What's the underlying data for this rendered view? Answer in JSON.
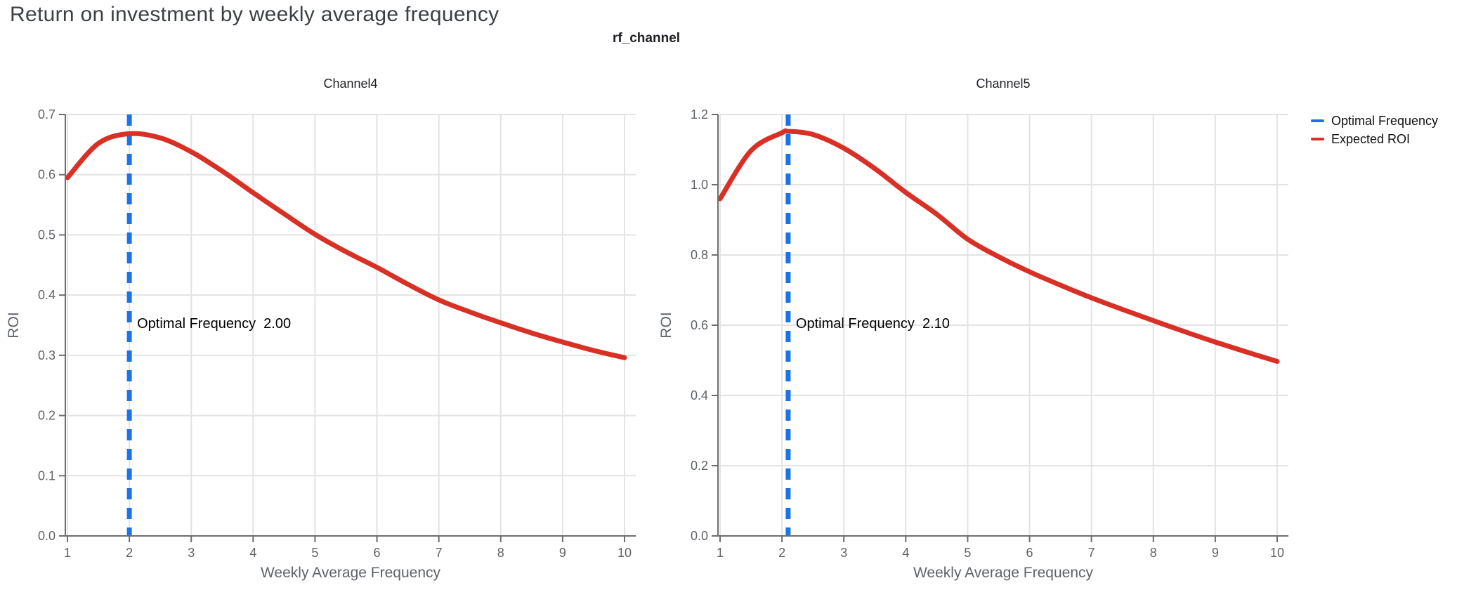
{
  "page": {
    "title": "Return on investment by weekly average frequency",
    "subtitle": "rf_channel"
  },
  "legend": {
    "position": "top-right",
    "items": [
      {
        "label": "Optimal Frequency",
        "color": "#1a73e8"
      },
      {
        "label": "Expected ROI",
        "color": "#d93025"
      }
    ]
  },
  "colors": {
    "accent_blue": "#1a73e8",
    "accent_red": "#d93025",
    "grid": "#e3e3e3",
    "axis": "#6e6e6e",
    "tick_text": "#5f6368",
    "title_text": "#3c4043",
    "chart_title_text": "#202124",
    "annotation_text": "#000000"
  },
  "chart_data": [
    {
      "type": "line",
      "title": "Channel4",
      "xlabel": "Weekly Average Frequency",
      "ylabel": "ROI",
      "xlim": [
        1,
        10
      ],
      "ylim": [
        0,
        0.7
      ],
      "xticks": [
        1,
        2,
        3,
        4,
        5,
        6,
        7,
        8,
        9,
        10
      ],
      "yticks": [
        0.0,
        0.1,
        0.2,
        0.3,
        0.4,
        0.5,
        0.6,
        0.7
      ],
      "grid": true,
      "vline": {
        "name": "Optimal Frequency",
        "x": 2.0,
        "color": "#1a73e8",
        "style": "dashed"
      },
      "annotation": {
        "label": "Optimal Frequency",
        "value": "2.00"
      },
      "series": [
        {
          "name": "Expected ROI",
          "color": "#d93025",
          "x": [
            1,
            1.5,
            2,
            2.5,
            3,
            3.5,
            4,
            4.5,
            5,
            5.5,
            6,
            6.5,
            7,
            7.5,
            8,
            8.5,
            9,
            9.5,
            10
          ],
          "y": [
            0.595,
            0.652,
            0.668,
            0.661,
            0.638,
            0.606,
            0.57,
            0.535,
            0.501,
            0.472,
            0.446,
            0.418,
            0.392,
            0.372,
            0.354,
            0.337,
            0.322,
            0.308,
            0.296
          ]
        }
      ]
    },
    {
      "type": "line",
      "title": "Channel5",
      "xlabel": "Weekly Average Frequency",
      "ylabel": "ROI",
      "xlim": [
        1,
        10
      ],
      "ylim": [
        0,
        1.2
      ],
      "xticks": [
        1,
        2,
        3,
        4,
        5,
        6,
        7,
        8,
        9,
        10
      ],
      "yticks": [
        0.0,
        0.2,
        0.4,
        0.6,
        0.8,
        1.0,
        1.2
      ],
      "grid": true,
      "vline": {
        "name": "Optimal Frequency",
        "x": 2.1,
        "color": "#1a73e8",
        "style": "dashed"
      },
      "annotation": {
        "label": "Optimal Frequency",
        "value": "2.10"
      },
      "series": [
        {
          "name": "Expected ROI",
          "color": "#d93025",
          "x": [
            1,
            1.5,
            2,
            2.1,
            2.5,
            3,
            3.5,
            4,
            4.5,
            5,
            5.5,
            6,
            6.5,
            7,
            7.5,
            8,
            8.5,
            9,
            9.5,
            10
          ],
          "y": [
            0.96,
            1.097,
            1.148,
            1.152,
            1.143,
            1.104,
            1.046,
            0.978,
            0.916,
            0.845,
            0.795,
            0.752,
            0.714,
            0.678,
            0.645,
            0.613,
            0.582,
            0.552,
            0.524,
            0.497
          ]
        }
      ]
    }
  ]
}
